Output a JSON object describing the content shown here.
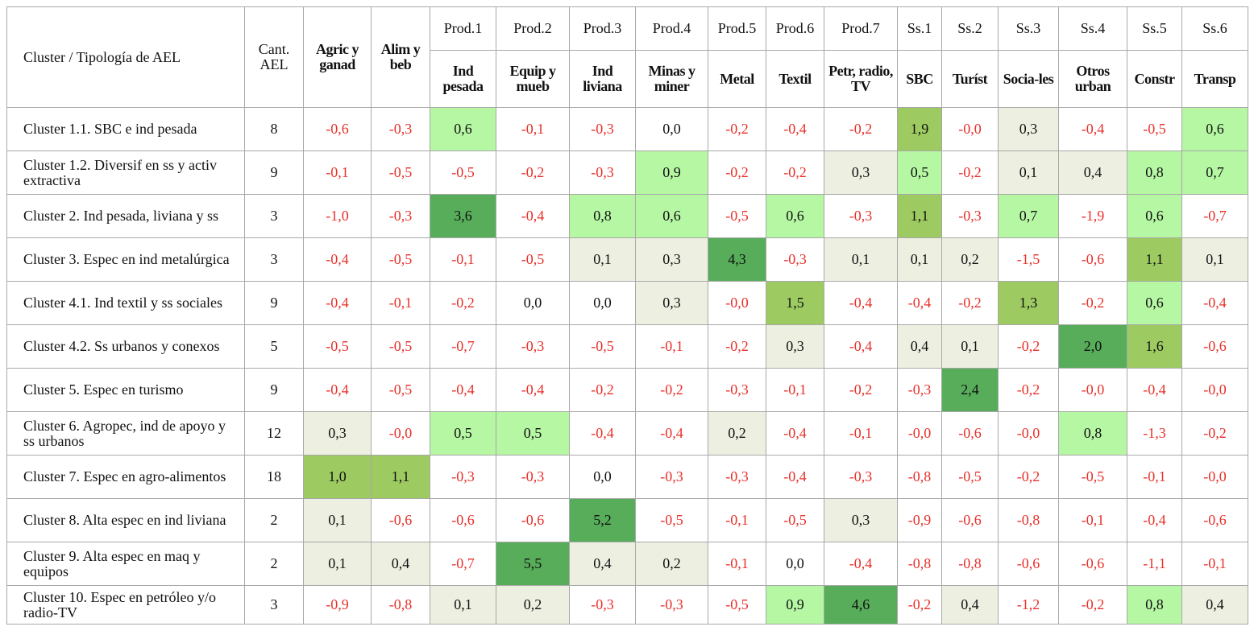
{
  "header": {
    "corner": "Cluster / Tipología de AEL",
    "count": "Cant. AEL",
    "columns": [
      {
        "label": "Agric y ganad"
      },
      {
        "label": "Alim y beb"
      },
      {
        "code": "Prod.1",
        "label": "Ind pesada"
      },
      {
        "code": "Prod.2",
        "label": "Equip y mueb"
      },
      {
        "code": "Prod.3",
        "label": "Ind liviana"
      },
      {
        "code": "Prod.4",
        "label": "Minas y miner"
      },
      {
        "code": "Prod.5",
        "label": "Metal"
      },
      {
        "code": "Prod.6",
        "label": "Textil"
      },
      {
        "code": "Prod.7",
        "label": "Petr, radio, TV"
      },
      {
        "code": "Ss.1",
        "label": "SBC"
      },
      {
        "code": "Ss.2",
        "label": "Turíst"
      },
      {
        "code": "Ss.3",
        "label": "Socia-les"
      },
      {
        "code": "Ss.4",
        "label": "Otros urban"
      },
      {
        "code": "Ss.5",
        "label": "Constr"
      },
      {
        "code": "Ss.6",
        "label": "Transp"
      }
    ]
  },
  "rows": [
    {
      "label": "Cluster 1.1. SBC e ind pesada",
      "count": 8,
      "values": [
        "-0,6",
        "-0,3",
        "0,6",
        "-0,1",
        "-0,3",
        "0,0",
        "-0,2",
        "-0,4",
        "-0,2",
        "1,9",
        "-0,0",
        "0,3",
        "-0,4",
        "-0,5",
        "0,6"
      ]
    },
    {
      "label": "Cluster 1.2. Diversif en ss y activ extractiva",
      "count": 9,
      "values": [
        "-0,1",
        "-0,5",
        "-0,5",
        "-0,2",
        "-0,3",
        "0,9",
        "-0,2",
        "-0,2",
        "0,3",
        "0,5",
        "-0,2",
        "0,1",
        "0,4",
        "0,8",
        "0,7"
      ]
    },
    {
      "label": "Cluster 2. Ind pesada, liviana y ss",
      "count": 3,
      "values": [
        "-1,0",
        "-0,3",
        "3,6",
        "-0,4",
        "0,8",
        "0,6",
        "-0,5",
        "0,6",
        "-0,3",
        "1,1",
        "-0,3",
        "0,7",
        "-1,9",
        "0,6",
        "-0,7"
      ]
    },
    {
      "label": "Cluster 3. Espec en ind metalúrgica",
      "count": 3,
      "values": [
        "-0,4",
        "-0,5",
        "-0,1",
        "-0,5",
        "0,1",
        "0,3",
        "4,3",
        "-0,3",
        "0,1",
        "0,1",
        "0,2",
        "-1,5",
        "-0,6",
        "1,1",
        "0,1"
      ]
    },
    {
      "label": "Cluster 4.1. Ind textil y ss sociales",
      "count": 9,
      "values": [
        "-0,4",
        "-0,1",
        "-0,2",
        "0,0",
        "0,0",
        "0,3",
        "-0,0",
        "1,5",
        "-0,4",
        "-0,4",
        "-0,2",
        "1,3",
        "-0,2",
        "0,6",
        "-0,4"
      ]
    },
    {
      "label": "Cluster 4.2. Ss urbanos y conexos",
      "count": 5,
      "values": [
        "-0,5",
        "-0,5",
        "-0,7",
        "-0,3",
        "-0,5",
        "-0,1",
        "-0,2",
        "0,3",
        "-0,4",
        "0,4",
        "0,1",
        "-0,2",
        "2,0",
        "1,6",
        "-0,6"
      ]
    },
    {
      "label": "Cluster 5. Espec en turismo",
      "count": 9,
      "values": [
        "-0,4",
        "-0,5",
        "-0,4",
        "-0,4",
        "-0,2",
        "-0,2",
        "-0,3",
        "-0,1",
        "-0,2",
        "-0,3",
        "2,4",
        "-0,2",
        "-0,0",
        "-0,4",
        "-0,0"
      ]
    },
    {
      "label": "Cluster 6. Agropec, ind de apoyo y ss urbanos",
      "count": 12,
      "values": [
        "0,3",
        "-0,0",
        "0,5",
        "0,5",
        "-0,4",
        "-0,4",
        "0,2",
        "-0,4",
        "-0,1",
        "-0,0",
        "-0,6",
        "-0,0",
        "0,8",
        "-1,3",
        "-0,2"
      ]
    },
    {
      "label": "Cluster 7. Espec en agro-alimentos",
      "count": 18,
      "values": [
        "1,0",
        "1,1",
        "-0,3",
        "-0,3",
        "0,0",
        "-0,3",
        "-0,3",
        "-0,4",
        "-0,3",
        "-0,8",
        "-0,5",
        "-0,2",
        "-0,5",
        "-0,1",
        "-0,0"
      ]
    },
    {
      "label": "Cluster 8. Alta espec en ind liviana",
      "count": 2,
      "values": [
        "0,1",
        "-0,6",
        "-0,6",
        "-0,6",
        "5,2",
        "-0,5",
        "-0,1",
        "-0,5",
        "0,3",
        "-0,9",
        "-0,6",
        "-0,8",
        "-0,1",
        "-0,4",
        "-0,6"
      ]
    },
    {
      "label": "Cluster 9. Alta espec en maq y equipos",
      "count": 2,
      "values": [
        "0,1",
        "0,4",
        "-0,7",
        "5,5",
        "0,4",
        "0,2",
        "-0,1",
        "0,0",
        "-0,4",
        "-0,8",
        "-0,8",
        "-0,6",
        "-0,6",
        "-1,1",
        "-0,1"
      ]
    },
    {
      "label": "Cluster 10. Espec en petróleo y/o radio-TV",
      "count": 3,
      "values": [
        "-0,9",
        "-0,8",
        "0,1",
        "0,2",
        "-0,3",
        "-0,3",
        "-0,5",
        "0,9",
        "4,6",
        "-0,2",
        "0,4",
        "-1,2",
        "-0,2",
        "0,8",
        "0,4"
      ]
    }
  ]
}
